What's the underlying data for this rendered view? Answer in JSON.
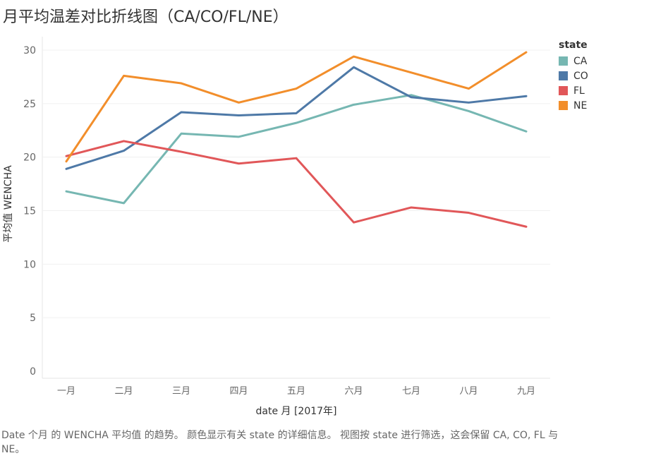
{
  "title": "月平均温差对比折线图（CA/CO/FL/NE）",
  "caption": "Date 个月 的 WENCHA 平均值 的趋势。 颜色显示有关 state 的详细信息。 视图按 state 进行筛选，这会保留 CA, CO, FL 与 NE。",
  "legend": {
    "title": "state",
    "items": [
      {
        "label": "CA",
        "color": "#76b7b2"
      },
      {
        "label": "CO",
        "color": "#4e79a7"
      },
      {
        "label": "FL",
        "color": "#e15759"
      },
      {
        "label": "NE",
        "color": "#f28e2b"
      }
    ]
  },
  "chart_data": {
    "type": "line",
    "title": "月平均温差对比折线图（CA/CO/FL/NE）",
    "xlabel": "date 月 [2017年]",
    "ylabel": "平均值 WENCHA",
    "categories": [
      "一月",
      "二月",
      "三月",
      "四月",
      "五月",
      "六月",
      "七月",
      "八月",
      "九月"
    ],
    "ylim": [
      0,
      30
    ],
    "yticks": [
      0,
      5,
      10,
      15,
      20,
      25,
      30
    ],
    "grid": true,
    "legend_position": "right",
    "series": [
      {
        "name": "CA",
        "color": "#76b7b2",
        "values": [
          16.8,
          15.7,
          22.2,
          21.9,
          23.2,
          24.9,
          25.8,
          24.3,
          22.4
        ]
      },
      {
        "name": "CO",
        "color": "#4e79a7",
        "values": [
          18.9,
          20.6,
          24.2,
          23.9,
          24.1,
          28.4,
          25.6,
          25.1,
          25.7
        ]
      },
      {
        "name": "FL",
        "color": "#e15759",
        "values": [
          20.1,
          21.5,
          20.5,
          19.4,
          19.9,
          13.9,
          15.3,
          14.8,
          13.5
        ]
      },
      {
        "name": "NE",
        "color": "#f28e2b",
        "values": [
          19.6,
          27.6,
          26.9,
          25.1,
          26.4,
          29.4,
          27.9,
          26.4,
          29.8
        ]
      }
    ]
  }
}
